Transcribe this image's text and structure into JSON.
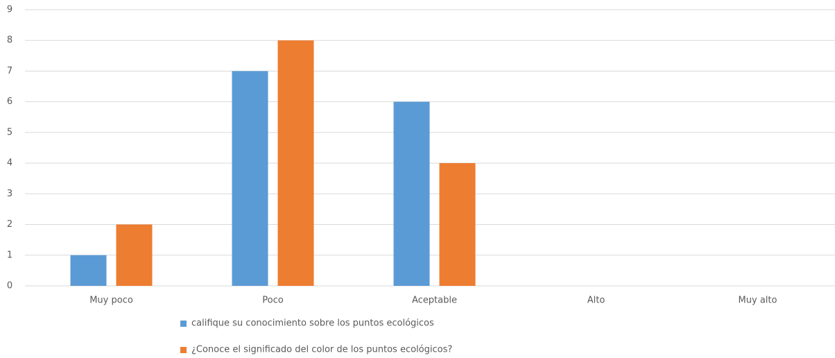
{
  "chart_data": {
    "type": "bar",
    "categories": [
      "Muy poco",
      "Poco",
      "Aceptable",
      "Alto",
      "Muy alto"
    ],
    "series": [
      {
        "name": "califique su conocimiento sobre los puntos ecológicos",
        "color": "#5b9bd5",
        "values": [
          1,
          7,
          6,
          0,
          0
        ]
      },
      {
        "name": "¿Conoce el significado del color de los puntos ecológicos?",
        "color": "#ed7d31",
        "values": [
          2,
          8,
          4,
          0,
          0
        ]
      }
    ],
    "ylim": [
      0,
      9
    ],
    "yticks": [
      0,
      1,
      2,
      3,
      4,
      5,
      6,
      7,
      8,
      9
    ],
    "grid": true,
    "legend": "bottom"
  }
}
